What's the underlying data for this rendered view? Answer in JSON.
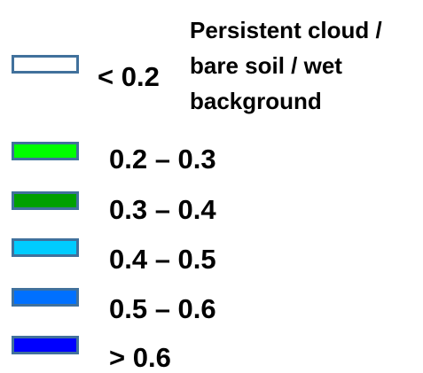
{
  "legend": {
    "items": [
      {
        "label": "< 0.2",
        "color": "#ffffff",
        "note": "Persistent cloud / bare soil / wet background"
      },
      {
        "label": "0.2 – 0.3",
        "color": "#00ff00"
      },
      {
        "label": "0.3 – 0.4",
        "color": "#00a000"
      },
      {
        "label": "0.4 – 0.5",
        "color": "#00ccff"
      },
      {
        "label": "0.5 – 0.6",
        "color": "#0070ff"
      },
      {
        "label": "> 0.6",
        "color": "#0000ff"
      }
    ]
  }
}
